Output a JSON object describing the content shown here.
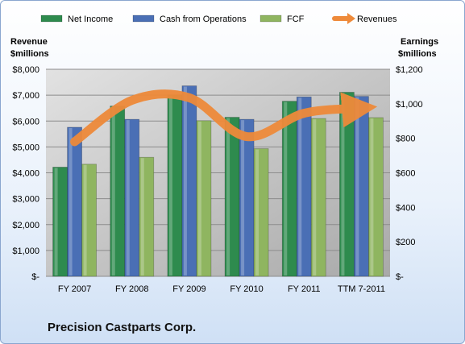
{
  "chart_data": {
    "type": "bar",
    "categories": [
      "FY 2007",
      "FY 2008",
      "FY 2009",
      "FY 2010",
      "FY 2011",
      "TTM 7-2011"
    ],
    "series": [
      {
        "name": "Net Income",
        "axis": "right",
        "color": "#2e8b4e",
        "values": [
          633,
          987,
          1052,
          922,
          1015,
          1067
        ]
      },
      {
        "name": "Cash from Operations",
        "axis": "right",
        "color": "#4a6fb5",
        "values": [
          864,
          910,
          1104,
          910,
          1040,
          1043
        ]
      },
      {
        "name": "FCF",
        "axis": "right",
        "color": "#8fb560",
        "values": [
          650,
          690,
          902,
          740,
          915,
          920
        ]
      },
      {
        "name": "Revenues",
        "axis": "left",
        "type": "line",
        "color": "#ee8a3a",
        "values": [
          5200,
          6800,
          6900,
          5400,
          6300,
          6500
        ]
      }
    ],
    "left_axis": {
      "title_line1": "Revenue",
      "title_line2": "$millions",
      "ylim": [
        0,
        8000
      ],
      "ticks": [
        {
          "value": 0,
          "label": "$-"
        },
        {
          "value": 1000,
          "label": "$1,000"
        },
        {
          "value": 2000,
          "label": "$2,000"
        },
        {
          "value": 3000,
          "label": "$3,000"
        },
        {
          "value": 4000,
          "label": "$4,000"
        },
        {
          "value": 5000,
          "label": "$5,000"
        },
        {
          "value": 6000,
          "label": "$6,000"
        },
        {
          "value": 7000,
          "label": "$7,000"
        },
        {
          "value": 8000,
          "label": "$8,000"
        }
      ]
    },
    "right_axis": {
      "title_line1": "Earnings",
      "title_line2": "$millions",
      "ylim": [
        0,
        1200
      ],
      "ticks": [
        {
          "value": 0,
          "label": "$-"
        },
        {
          "value": 200,
          "label": "$200"
        },
        {
          "value": 400,
          "label": "$400"
        },
        {
          "value": 600,
          "label": "$600"
        },
        {
          "value": 800,
          "label": "$800"
        },
        {
          "value": 1000,
          "label": "$1,000"
        },
        {
          "value": 1200,
          "label": "$1,200"
        }
      ]
    },
    "legend_position": "top",
    "grid": true
  },
  "company_name": "Precision Castparts Corp."
}
